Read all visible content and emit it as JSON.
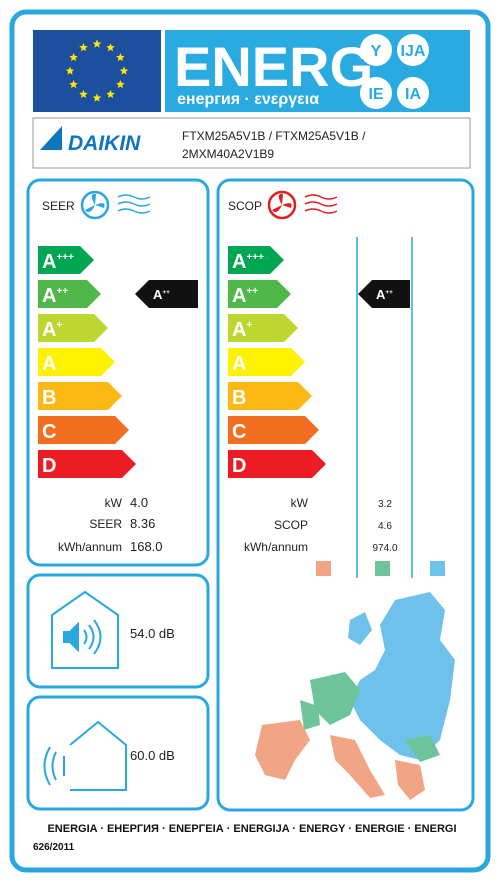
{
  "header": {
    "title": "ENERG",
    "subtitle": "енергия · ενεργεια",
    "badges": [
      "Y",
      "IJA",
      "IE",
      "IA"
    ]
  },
  "supplier": {
    "brand": "DAIKIN",
    "model_lines": [
      "FTXM25A5V1B / FTXM25A5V1B /",
      "2MXM40A2V1B9"
    ]
  },
  "classes": [
    {
      "letter": "A",
      "sup": "+++",
      "color": "#00a651"
    },
    {
      "letter": "A",
      "sup": "++",
      "color": "#50b848"
    },
    {
      "letter": "A",
      "sup": "+",
      "color": "#bed630"
    },
    {
      "letter": "A",
      "color": "#fff200"
    },
    {
      "letter": "B",
      "color": "#fcb814"
    },
    {
      "letter": "C",
      "color": "#f26f22"
    },
    {
      "letter": "D",
      "color": "#ec1c24"
    }
  ],
  "cooling": {
    "title": "SEER",
    "rating": {
      "letter": "A",
      "sup": "++"
    },
    "rows": [
      {
        "label": "kW",
        "value": "4.0"
      },
      {
        "label": "SEER",
        "value": "8.36"
      },
      {
        "label": "kWh/annum",
        "value": "168.0"
      }
    ]
  },
  "heating": {
    "title": "SCOP",
    "rating": {
      "letter": "A",
      "sup": "++"
    },
    "rows": [
      {
        "label": "kW",
        "value": "3.2"
      },
      {
        "label": "SCOP",
        "value": "4.6"
      },
      {
        "label": "kWh/annum",
        "value": "974.0"
      }
    ]
  },
  "noise": {
    "indoor": "54.0 dB",
    "outdoor": "60.0 dB"
  },
  "footer": {
    "languages": "ENERGIA · ЕНЕРГИЯ · ΕΝΕΡΓΕΙΑ · ENERGIJA · ENERGY · ENERGIE · ENERGI",
    "regulation": "626/2011"
  }
}
